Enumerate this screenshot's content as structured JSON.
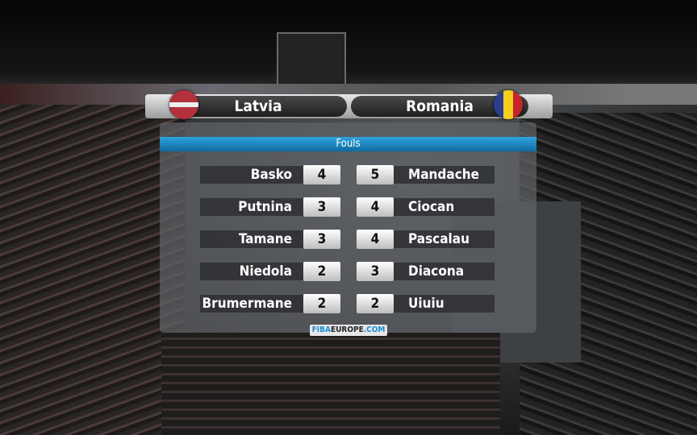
{
  "header": {
    "home_team": "Latvia",
    "away_team": "Romania",
    "home_flag": "latvia-flag",
    "away_flag": "romania-flag"
  },
  "panel": {
    "title": "Fouls",
    "rows": [
      {
        "home_player": "Basko",
        "home_fouls": "4",
        "away_fouls": "5",
        "away_player": "Mandache"
      },
      {
        "home_player": "Putnina",
        "home_fouls": "3",
        "away_fouls": "4",
        "away_player": "Ciocan"
      },
      {
        "home_player": "Tamane",
        "home_fouls": "3",
        "away_fouls": "4",
        "away_player": "Pascalau"
      },
      {
        "home_player": "Niedola",
        "home_fouls": "2",
        "away_fouls": "3",
        "away_player": "Diacona"
      },
      {
        "home_player": "Brumermane",
        "home_fouls": "2",
        "away_fouls": "2",
        "away_player": "Uiuiu"
      }
    ]
  },
  "logo": {
    "part1": "FIBA",
    "part2": "EUROPE",
    "part3": ".COM"
  },
  "colors": {
    "title_bar": "#1a86c4",
    "panel": "#5f6266"
  }
}
